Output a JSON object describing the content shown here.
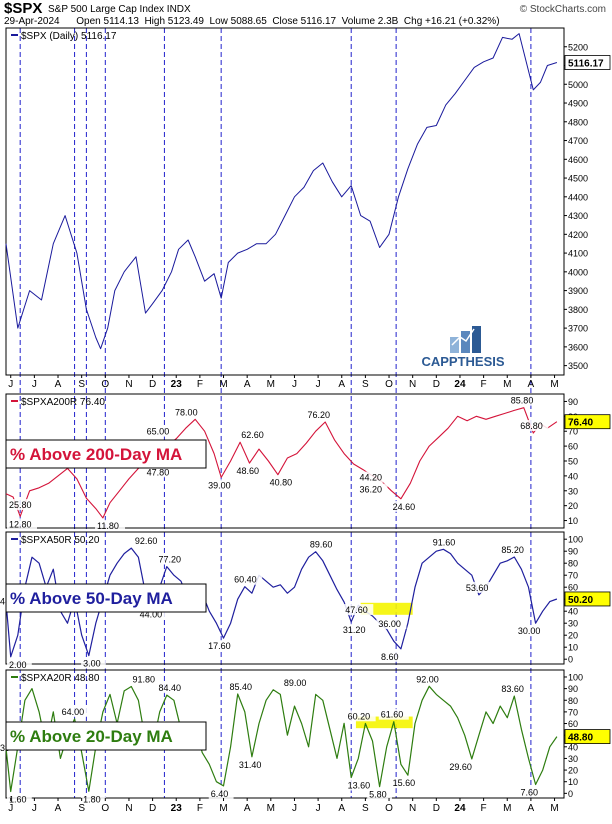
{
  "header": {
    "ticker": "$SPX",
    "name": "S&P 500 Large Cap Index  INDX",
    "stats": "29-Apr-2024      Open 5114.13  High 5123.49  Low 5088.65  Close 5116.17  Volume 2.3B  Chg +16.21 (+0.32%)",
    "source": "© StockCharts.com"
  },
  "brand": {
    "name": "CAPPTHESIS"
  },
  "colors": {
    "spx": "#1a1a9c",
    "p200": "#d4143a",
    "p50": "#1f1f9e",
    "p20": "#2e7d10",
    "highlight": "#f5f500",
    "vline": "#2222cc"
  },
  "chart_data": [
    {
      "type": "line",
      "title": "$SPX (Daily) 5116.17",
      "last_label": "5116.17",
      "ylim": [
        3450,
        5300
      ],
      "yticks": [
        3500,
        3600,
        3700,
        3800,
        3900,
        4000,
        4100,
        4200,
        4300,
        4400,
        4500,
        4600,
        4700,
        4800,
        4900,
        5000,
        5100,
        5200
      ],
      "xlabels": [
        "J",
        "J",
        "A",
        "S",
        "O",
        "N",
        "D",
        "23",
        "F",
        "M",
        "A",
        "M",
        "J",
        "J",
        "A",
        "S",
        "O",
        "N",
        "D",
        "24",
        "F",
        "M",
        "A",
        "M"
      ],
      "x_months": [
        0,
        1,
        2,
        3,
        4,
        5,
        6,
        7,
        8,
        9,
        10,
        11,
        12,
        13,
        14,
        15,
        16,
        17,
        18,
        19,
        20,
        21,
        22,
        23
      ],
      "series": [
        {
          "name": "SPX",
          "x": [
            0,
            0.5,
            1.0,
            1.5,
            2.0,
            2.5,
            3.0,
            3.4,
            3.8,
            4.0,
            4.3,
            4.6,
            5.0,
            5.5,
            5.9,
            6.2,
            6.6,
            7.0,
            7.3,
            7.7,
            8.0,
            8.4,
            8.8,
            9.1,
            9.4,
            9.8,
            10.2,
            10.6,
            11.0,
            11.4,
            11.8,
            12.2,
            12.6,
            13.0,
            13.4,
            13.8,
            14.2,
            14.6,
            15.0,
            15.4,
            15.8,
            16.2,
            16.6,
            17.0,
            17.4,
            17.8,
            18.2,
            18.6,
            19.0,
            19.4,
            19.8,
            20.2,
            20.6,
            21.0,
            21.4,
            21.7,
            22.0,
            22.3,
            22.6,
            22.9,
            23.3
          ],
          "values": [
            4150,
            3700,
            3900,
            3850,
            4150,
            4300,
            4100,
            3800,
            3650,
            3590,
            3700,
            3900,
            4000,
            4080,
            3780,
            3830,
            3900,
            4000,
            4120,
            4170,
            4080,
            3950,
            3990,
            3860,
            4050,
            4100,
            4120,
            4150,
            4150,
            4200,
            4300,
            4400,
            4450,
            4540,
            4580,
            4480,
            4400,
            4460,
            4300,
            4270,
            4130,
            4200,
            4400,
            4550,
            4680,
            4770,
            4780,
            4890,
            4950,
            5020,
            5090,
            5120,
            5140,
            5250,
            5240,
            5270,
            5120,
            4970,
            5010,
            5100,
            5116
          ]
        }
      ]
    },
    {
      "type": "line",
      "title": "$SPXA200R 76.40",
      "label": "% Above 200-Day MA",
      "last_label": "76.40",
      "ylim": [
        5,
        95
      ],
      "yticks": [
        10,
        20,
        30,
        40,
        50,
        60,
        70,
        80,
        90
      ],
      "annotations": [
        {
          "text": "25.80",
          "x": 0.3,
          "y": 25.8
        },
        {
          "text": "12.80",
          "x": 0.1,
          "y": 12.8
        },
        {
          "text": "11.80",
          "x": 4.4,
          "y": 11.8
        },
        {
          "text": "65.00",
          "x": 6.5,
          "y": 65.0
        },
        {
          "text": "47.80",
          "x": 6.5,
          "y": 47.8
        },
        {
          "text": "78.00",
          "x": 7.7,
          "y": 78.0
        },
        {
          "text": "39.00",
          "x": 9.1,
          "y": 39.0
        },
        {
          "text": "62.60",
          "x": 10.5,
          "y": 62.6
        },
        {
          "text": "48.60",
          "x": 10.3,
          "y": 48.6
        },
        {
          "text": "40.80",
          "x": 11.7,
          "y": 40.8
        },
        {
          "text": "76.20",
          "x": 13.3,
          "y": 76.2
        },
        {
          "text": "44.20",
          "x": 15.5,
          "y": 44.2
        },
        {
          "text": "36.20",
          "x": 15.5,
          "y": 36.2
        },
        {
          "text": "24.60",
          "x": 16.9,
          "y": 24.6
        },
        {
          "text": "85.80",
          "x": 21.9,
          "y": 85.8
        },
        {
          "text": "68.80",
          "x": 22.3,
          "y": 68.8
        }
      ],
      "series": [
        {
          "name": "% Above 200-Day MA",
          "x": [
            0,
            0.3,
            0.6,
            1.0,
            1.4,
            1.8,
            2.2,
            2.6,
            3.0,
            3.4,
            3.8,
            4.1,
            4.4,
            4.8,
            5.2,
            5.6,
            6.0,
            6.4,
            6.8,
            7.2,
            7.6,
            8.0,
            8.4,
            8.8,
            9.1,
            9.5,
            9.9,
            10.3,
            10.7,
            11.1,
            11.5,
            11.9,
            12.3,
            12.7,
            13.1,
            13.5,
            13.9,
            14.3,
            14.7,
            15.1,
            15.5,
            15.9,
            16.3,
            16.7,
            17.1,
            17.5,
            17.9,
            18.3,
            18.7,
            19.1,
            19.5,
            19.9,
            20.3,
            20.7,
            21.1,
            21.5,
            21.9,
            22.3,
            22.6,
            22.9,
            23.3
          ],
          "values": [
            28,
            25.8,
            12.8,
            30,
            32,
            35,
            40,
            45,
            38,
            25,
            18,
            11.8,
            22,
            30,
            38,
            45,
            50,
            47.8,
            60,
            65,
            72,
            78,
            70,
            55,
            39,
            50,
            62.6,
            48.6,
            58,
            50,
            40.8,
            52,
            55,
            62,
            70,
            76.2,
            64,
            55,
            48,
            44.2,
            40,
            36.2,
            30,
            24.6,
            35,
            50,
            60,
            66,
            72,
            80,
            77,
            80,
            78,
            80,
            82,
            84,
            85.8,
            68.8,
            75,
            72,
            76.4
          ]
        }
      ]
    },
    {
      "type": "line",
      "title": "$SPXA50R 50.20",
      "label": "% Above 50-Day MA",
      "last_label": "50.20",
      "ylim": [
        -4,
        106
      ],
      "yticks": [
        0,
        10,
        20,
        30,
        40,
        50,
        60,
        70,
        80,
        90,
        100
      ],
      "left_clip": "48",
      "highlight": {
        "x0": 15.0,
        "x1": 17.2,
        "y0": 37,
        "y1": 47
      },
      "annotations": [
        {
          "text": "2.00",
          "x": 0.2,
          "y": 2.0
        },
        {
          "text": "3.00",
          "x": 3.7,
          "y": 3.0
        },
        {
          "text": "92.60",
          "x": 6.0,
          "y": 92.6
        },
        {
          "text": "77.20",
          "x": 7.0,
          "y": 77.2
        },
        {
          "text": "44.00",
          "x": 6.2,
          "y": 44.0
        },
        {
          "text": "17.60",
          "x": 9.1,
          "y": 17.6
        },
        {
          "text": "60.40",
          "x": 10.2,
          "y": 60.4
        },
        {
          "text": "89.60",
          "x": 13.4,
          "y": 89.6
        },
        {
          "text": "47.60",
          "x": 14.9,
          "y": 47.6
        },
        {
          "text": "31.20",
          "x": 14.8,
          "y": 31.2
        },
        {
          "text": "36.00",
          "x": 16.3,
          "y": 36.0
        },
        {
          "text": "8.60",
          "x": 16.3,
          "y": 8.6
        },
        {
          "text": "91.60",
          "x": 18.6,
          "y": 91.6
        },
        {
          "text": "53.60",
          "x": 20.0,
          "y": 53.6
        },
        {
          "text": "85.20",
          "x": 21.5,
          "y": 85.2
        },
        {
          "text": "30.00",
          "x": 22.2,
          "y": 30.0
        }
      ],
      "series": [
        {
          "name": "% Above 50-Day MA",
          "x": [
            0,
            0.2,
            0.5,
            0.8,
            1.1,
            1.4,
            1.7,
            2.0,
            2.3,
            2.6,
            2.9,
            3.2,
            3.5,
            3.8,
            4.1,
            4.4,
            4.7,
            5.0,
            5.3,
            5.6,
            5.9,
            6.2,
            6.5,
            6.8,
            7.1,
            7.4,
            7.7,
            8.0,
            8.3,
            8.6,
            8.9,
            9.2,
            9.5,
            9.8,
            10.1,
            10.4,
            10.7,
            11.0,
            11.3,
            11.6,
            11.9,
            12.2,
            12.5,
            12.8,
            13.1,
            13.4,
            13.7,
            14.0,
            14.3,
            14.6,
            14.9,
            15.2,
            15.5,
            15.8,
            16.1,
            16.4,
            16.7,
            17.0,
            17.3,
            17.6,
            17.9,
            18.2,
            18.5,
            18.8,
            19.1,
            19.4,
            19.7,
            20.0,
            20.3,
            20.6,
            20.9,
            21.2,
            21.5,
            21.8,
            22.1,
            22.4,
            22.7,
            23.0,
            23.3
          ],
          "values": [
            48,
            2,
            20,
            60,
            85,
            80,
            60,
            75,
            40,
            30,
            50,
            20,
            3,
            30,
            50,
            70,
            80,
            88,
            92.6,
            85,
            55,
            44,
            60,
            77.2,
            70,
            65,
            50,
            60,
            55,
            40,
            30,
            17.6,
            30,
            50,
            60.4,
            55,
            70,
            65,
            60,
            62,
            55,
            60,
            75,
            85,
            89.6,
            82,
            70,
            58,
            47.6,
            31.2,
            45,
            40,
            36,
            30,
            25,
            15,
            8.6,
            30,
            60,
            80,
            85,
            90,
            91.6,
            88,
            80,
            75,
            70,
            53.6,
            60,
            70,
            80,
            82,
            85.2,
            75,
            60,
            30,
            40,
            48,
            50.2
          ]
        }
      ]
    },
    {
      "type": "line",
      "title": "$SPXA20R 48.80",
      "label": "% Above 20-Day MA",
      "last_label": "48.80",
      "ylim": [
        -4,
        106
      ],
      "yticks": [
        0,
        10,
        20,
        30,
        40,
        50,
        60,
        70,
        80,
        90,
        100
      ],
      "left_clip": "39",
      "highlight": {
        "x0": 14.8,
        "x1": 17.2,
        "y0": 56,
        "y1": 66
      },
      "annotations": [
        {
          "text": "1.60",
          "x": 0.2,
          "y": 1.6
        },
        {
          "text": "64.00",
          "x": 2.9,
          "y": 64.0
        },
        {
          "text": "1.80",
          "x": 3.7,
          "y": 1.8
        },
        {
          "text": "91.80",
          "x": 5.9,
          "y": 91.8
        },
        {
          "text": "84.40",
          "x": 7.0,
          "y": 84.4
        },
        {
          "text": "6.40",
          "x": 9.1,
          "y": 6.4
        },
        {
          "text": "85.40",
          "x": 10.0,
          "y": 85.4
        },
        {
          "text": "31.40",
          "x": 10.4,
          "y": 31.4
        },
        {
          "text": "89.00",
          "x": 12.3,
          "y": 89.0
        },
        {
          "text": "60.20",
          "x": 15.0,
          "y": 60.2
        },
        {
          "text": "61.60",
          "x": 16.4,
          "y": 61.6
        },
        {
          "text": "13.60",
          "x": 15.0,
          "y": 13.6
        },
        {
          "text": "5.80",
          "x": 15.8,
          "y": 5.8
        },
        {
          "text": "15.60",
          "x": 16.9,
          "y": 15.6
        },
        {
          "text": "92.00",
          "x": 17.9,
          "y": 92.0
        },
        {
          "text": "29.60",
          "x": 19.3,
          "y": 29.6
        },
        {
          "text": "83.60",
          "x": 21.5,
          "y": 83.6
        },
        {
          "text": "7.60",
          "x": 22.2,
          "y": 7.6
        }
      ],
      "series": [
        {
          "name": "% Above 20-Day MA",
          "x": [
            0,
            0.2,
            0.5,
            0.8,
            1.1,
            1.4,
            1.7,
            2.0,
            2.3,
            2.6,
            2.9,
            3.2,
            3.5,
            3.8,
            4.1,
            4.4,
            4.7,
            5.0,
            5.3,
            5.6,
            5.9,
            6.2,
            6.5,
            6.8,
            7.1,
            7.4,
            7.7,
            8.0,
            8.3,
            8.6,
            8.9,
            9.2,
            9.5,
            9.8,
            10.1,
            10.4,
            10.7,
            11.0,
            11.3,
            11.6,
            11.9,
            12.2,
            12.5,
            12.8,
            13.1,
            13.4,
            13.7,
            14.0,
            14.3,
            14.6,
            14.9,
            15.2,
            15.5,
            15.8,
            16.1,
            16.4,
            16.7,
            17.0,
            17.3,
            17.6,
            17.9,
            18.2,
            18.5,
            18.8,
            19.1,
            19.4,
            19.7,
            20.0,
            20.3,
            20.6,
            20.9,
            21.2,
            21.5,
            21.8,
            22.1,
            22.4,
            22.7,
            23.0,
            23.3
          ],
          "values": [
            39,
            1.6,
            40,
            80,
            90,
            70,
            40,
            70,
            30,
            50,
            64,
            35,
            1.8,
            40,
            70,
            85,
            60,
            88,
            91.8,
            80,
            45,
            40,
            70,
            84.4,
            80,
            55,
            40,
            60,
            35,
            25,
            10,
            6.4,
            40,
            85.4,
            70,
            31.4,
            60,
            80,
            89,
            85,
            50,
            75,
            60,
            40,
            85,
            80,
            55,
            30,
            60.2,
            13.6,
            30,
            60,
            45,
            5.8,
            40,
            61.6,
            25,
            15.6,
            60,
            80,
            92,
            85,
            80,
            75,
            65,
            50,
            29.6,
            50,
            70,
            60,
            75,
            65,
            83.6,
            55,
            30,
            7.6,
            20,
            40,
            48.8
          ]
        }
      ]
    }
  ]
}
